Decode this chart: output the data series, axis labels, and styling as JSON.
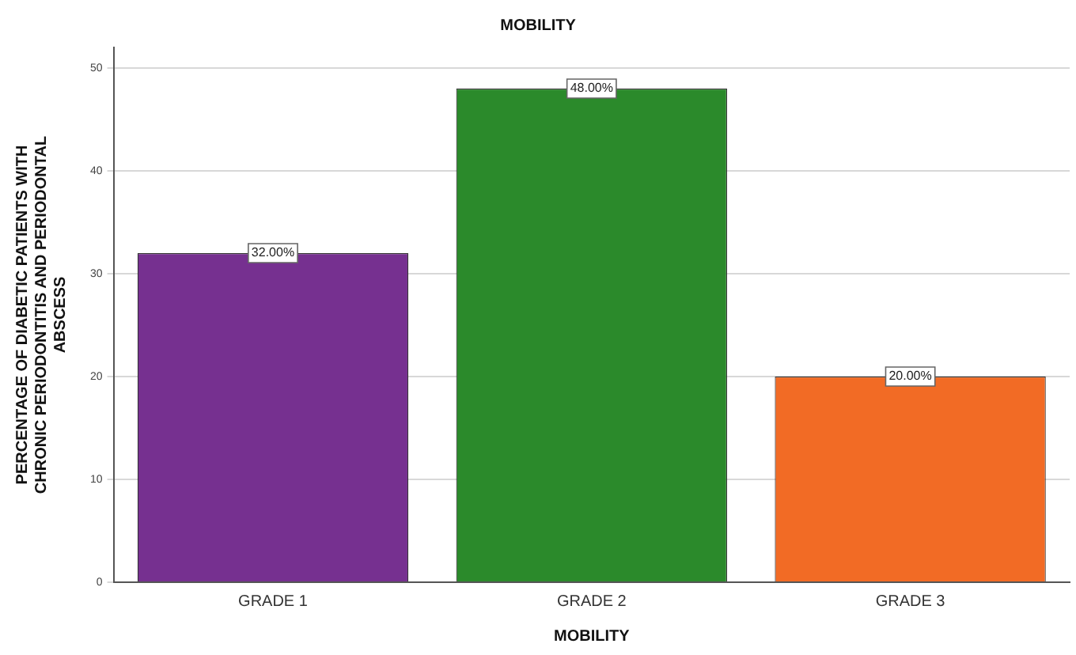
{
  "chart_data": {
    "type": "bar",
    "title": "MOBILITY",
    "xlabel": "MOBILITY",
    "ylabel": "PERCENTAGE OF DIABETIC PATIENTS WITH CHRONIC PERIODONTITIS AND PERIODONTAL ABSCESS",
    "categories": [
      "GRADE 1",
      "GRADE 2",
      "GRADE 3"
    ],
    "values": [
      32,
      48,
      20
    ],
    "colors": [
      "#763090",
      "#2b8a2b",
      "#f26b25"
    ],
    "value_labels": [
      "32.00%",
      "48.00%",
      "20.00%"
    ],
    "ylim": [
      0,
      52
    ],
    "yticks": [
      0,
      10,
      20,
      30,
      40,
      50
    ],
    "grid": "y",
    "legend": false
  }
}
